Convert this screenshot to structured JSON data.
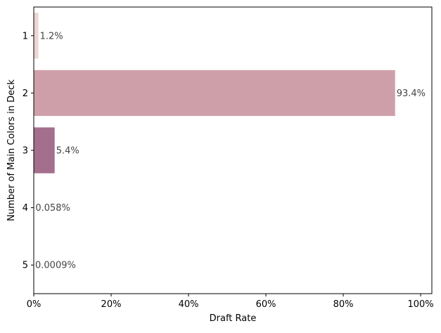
{
  "chart_data": {
    "type": "bar",
    "orientation": "horizontal",
    "categories": [
      "1",
      "2",
      "3",
      "4",
      "5"
    ],
    "values": [
      1.2,
      93.4,
      5.4,
      0.058,
      0.0009
    ],
    "data_labels": [
      "1.2%",
      "93.4%",
      "5.4%",
      "0.058%",
      "0.0009%"
    ],
    "colors": [
      "#ecd5d2",
      "#cf9fa9",
      "#a36f8c",
      "#6b4a72",
      "#3b2a50"
    ],
    "xlabel": "Draft Rate",
    "ylabel": "Number of Main Colors in Deck",
    "xlim": [
      0,
      102.9
    ],
    "xticks": [
      0,
      20,
      40,
      60,
      80,
      100
    ],
    "xtick_labels": [
      "0%",
      "20%",
      "40%",
      "60%",
      "80%",
      "100%"
    ],
    "grid": false,
    "label_color": "#444444"
  }
}
